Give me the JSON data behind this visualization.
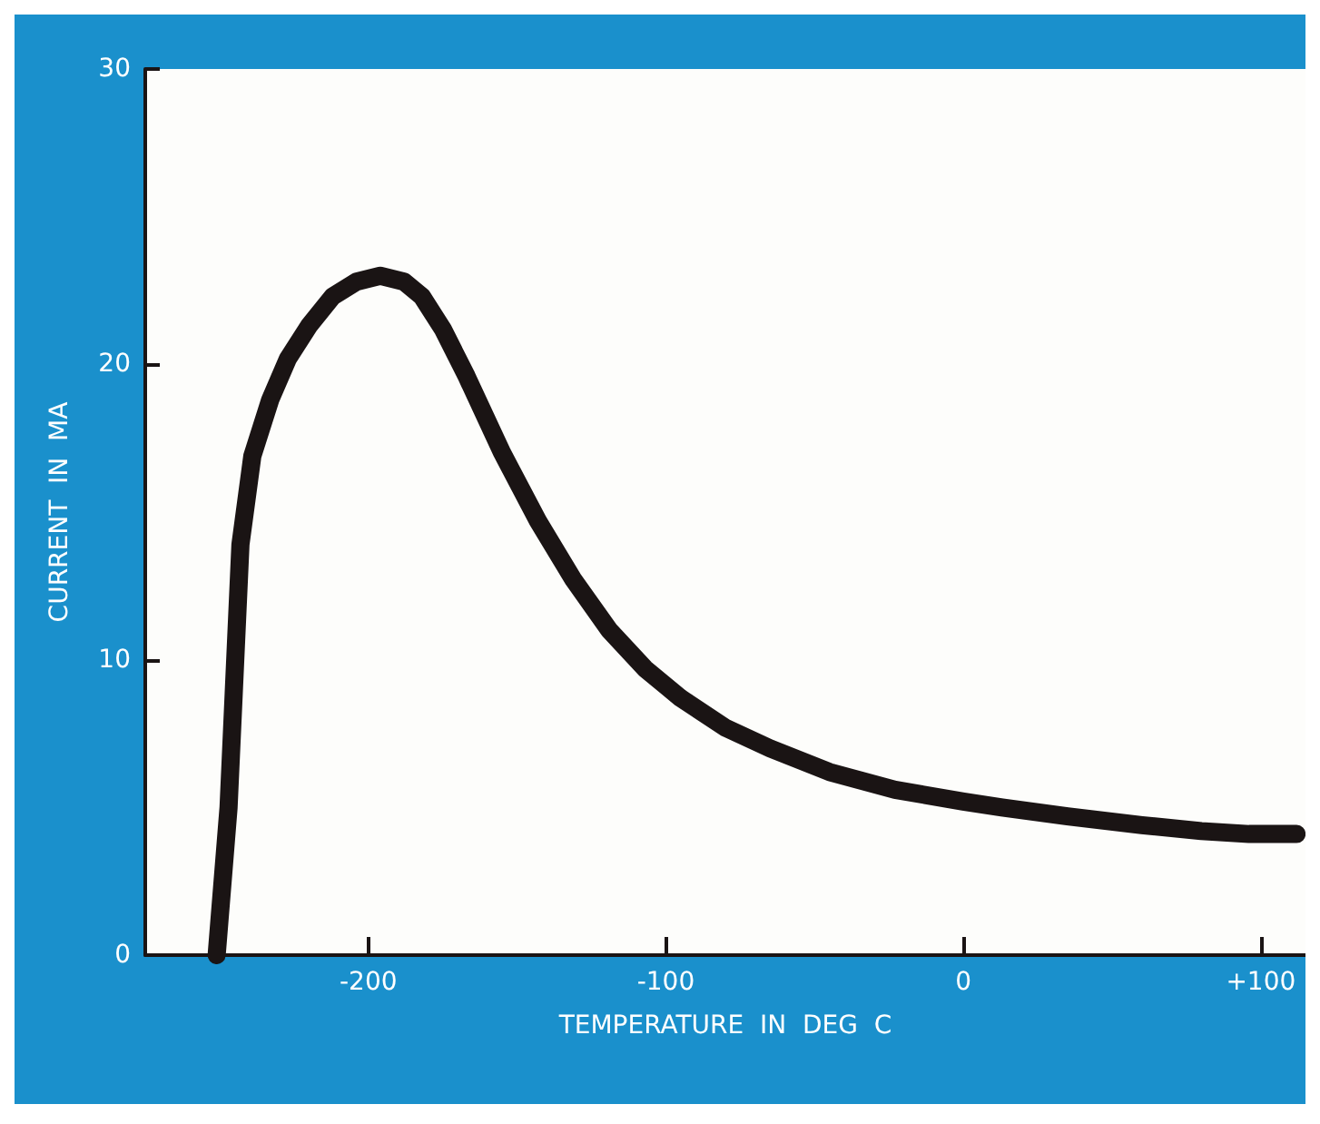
{
  "chart_data": {
    "type": "line",
    "xlabel": "TEMPERATURE  IN  DEG  C",
    "ylabel": "CURRENT  IN  MA",
    "x": [
      -251,
      -247,
      -243,
      -239,
      -233,
      -227,
      -220,
      -212,
      -204,
      -196,
      -188,
      -182,
      -175,
      -167,
      -155,
      -143,
      -131,
      -119,
      -107,
      -95,
      -80,
      -65,
      -45,
      -23,
      0,
      13,
      35,
      60,
      80,
      96,
      112
    ],
    "series": [
      {
        "color": "#1a1414",
        "values": [
          0,
          5,
          13.9,
          16.9,
          18.8,
          20.2,
          21.3,
          22.3,
          22.8,
          23,
          22.8,
          22.3,
          21.2,
          19.6,
          17,
          14.7,
          12.7,
          11,
          9.7,
          8.7,
          7.7,
          7,
          6.2,
          5.6,
          5.2,
          5,
          4.7,
          4.4,
          4.2,
          4.1,
          4.1
        ]
      }
    ],
    "xlim": [
      -275,
      115
    ],
    "xticks": [
      -200,
      -100,
      0,
      {
        "value": 100,
        "label": "+100"
      }
    ],
    "ylim": [
      0,
      30
    ],
    "yticks": [
      0,
      10,
      20,
      30
    ],
    "grid": false,
    "line_style": "solid"
  }
}
